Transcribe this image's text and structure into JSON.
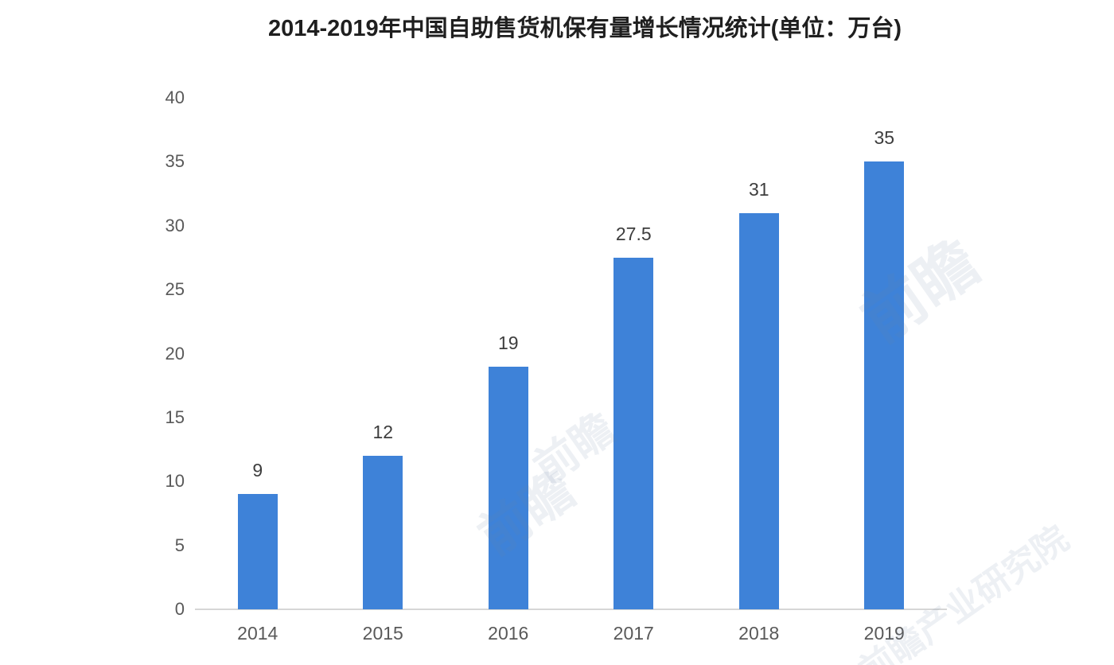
{
  "chart_data": {
    "type": "bar",
    "title": "2014-2019年中国自助售货机保有量增长情况统计(单位：万台)",
    "categories": [
      "2014",
      "2015",
      "2016",
      "2017",
      "2018",
      "2019"
    ],
    "values": [
      9,
      12,
      19,
      27.5,
      31,
      35
    ],
    "value_labels": [
      "9",
      "12",
      "19",
      "27.5",
      "31",
      "35"
    ],
    "xlabel": "",
    "ylabel": "",
    "ylim": [
      0,
      40
    ],
    "y_ticks": [
      0,
      5,
      10,
      15,
      20,
      25,
      30,
      35,
      40
    ],
    "grid": false,
    "legend": false,
    "bar_color": "#3e82d8",
    "axis_line_color": "#d6d6d6",
    "tick_label_color": "#595959",
    "value_label_color": "#3d3d3d",
    "title_color": "#1f1f1f"
  },
  "watermarks": [
    {
      "text": "前瞻"
    },
    {
      "text": "前瞻"
    },
    {
      "text": "前瞻"
    },
    {
      "text": "前瞻产业研究院"
    }
  ]
}
